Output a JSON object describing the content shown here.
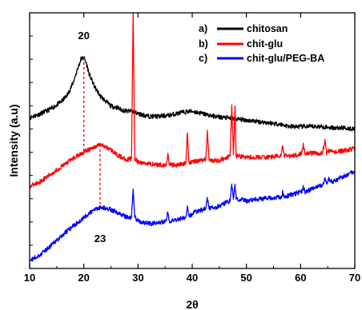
{
  "chart_data": {
    "type": "line",
    "xlabel": "2θ",
    "ylabel": "Intensity (a.u)",
    "xlim": [
      10,
      70
    ],
    "xticks": [
      10,
      20,
      30,
      40,
      50,
      60,
      70
    ],
    "xtick_labels": [
      "10",
      "20",
      "30",
      "40",
      "50",
      "60",
      "70"
    ],
    "ylim": [
      0,
      100
    ],
    "y_tick_labels_shown": false,
    "grid": false,
    "legend_position": "top-right",
    "series": [
      {
        "name": "chitosan",
        "legend_prefix": "a)",
        "color": "#000000",
        "x": [
          10,
          12,
          14,
          16,
          17,
          18,
          19,
          19.5,
          20,
          20.5,
          21,
          22,
          23,
          24,
          25,
          26,
          27,
          28,
          29,
          30,
          32,
          34,
          36,
          38,
          40,
          42,
          44,
          46,
          48,
          50,
          52,
          54,
          56,
          58,
          60,
          62,
          64,
          66,
          68,
          70
        ],
        "y": [
          59,
          60.5,
          62.5,
          65.5,
          68,
          72.5,
          79,
          82,
          82.5,
          80,
          76,
          71,
          67.5,
          65.5,
          63.5,
          63,
          62,
          61.5,
          61.5,
          60.5,
          59.5,
          59.5,
          60,
          61,
          61.5,
          60.5,
          59.5,
          59,
          58.5,
          58,
          57.5,
          57,
          56.5,
          55.5,
          55.5,
          55.5,
          55.5,
          55,
          55,
          54.5
        ]
      },
      {
        "name": "chit-glu",
        "legend_prefix": "b)",
        "color": "#ff0000",
        "x": [
          10,
          12,
          14,
          16,
          18,
          20,
          21,
          22,
          23,
          24,
          25,
          26,
          27,
          28,
          28.8,
          29.1,
          29.4,
          30,
          32,
          34,
          35.2,
          35.5,
          35.8,
          37,
          38.8,
          39.1,
          39.4,
          40.5,
          42.5,
          42.8,
          43.1,
          44.5,
          46,
          47,
          47.3,
          47.6,
          47.9,
          48.1,
          48.4,
          50,
          52,
          54,
          56.4,
          56.7,
          57,
          58.5,
          60.2,
          60.5,
          60.8,
          62,
          64,
          64.5,
          64.8,
          65.1,
          66,
          68,
          70
        ],
        "y": [
          32,
          34,
          37,
          40,
          43,
          45.5,
          46.5,
          47.5,
          48.5,
          47.5,
          46.5,
          44.5,
          43.5,
          42.5,
          43,
          100,
          43,
          41.5,
          41,
          40.5,
          40.5,
          45,
          40.5,
          40.5,
          41,
          53,
          41.5,
          42,
          42.5,
          54,
          42.5,
          42,
          43,
          44,
          64,
          44.5,
          63.5,
          44,
          44,
          43.5,
          43.5,
          43.5,
          44,
          48,
          44,
          44,
          45,
          49,
          45,
          45,
          45,
          50,
          45,
          46,
          45.5,
          46,
          47
        ]
      },
      {
        "name": "chit-glu/PEG-BA",
        "legend_prefix": "c)",
        "color": "#0000ff",
        "x": [
          10,
          12,
          14,
          16,
          18,
          20,
          21,
          22,
          23,
          24,
          25,
          26,
          27,
          28,
          28.8,
          29.1,
          29.4,
          30,
          32,
          34,
          35.2,
          35.5,
          35.8,
          37,
          38.8,
          39.1,
          39.4,
          40.5,
          42.5,
          42.8,
          43.1,
          44.5,
          46,
          47,
          47.3,
          47.6,
          47.9,
          48.1,
          48.4,
          50,
          52,
          54,
          56.4,
          56.7,
          57,
          58.5,
          60.2,
          60.5,
          60.8,
          62,
          64,
          64.5,
          64.8,
          65.1,
          66,
          68,
          70
        ],
        "y": [
          3,
          5.5,
          9,
          13,
          16.5,
          20,
          21.5,
          23,
          24,
          23.5,
          23,
          22,
          21,
          20,
          20,
          31,
          20,
          18.5,
          17.5,
          18,
          18.5,
          22,
          18.5,
          19,
          20,
          24.5,
          20.5,
          22,
          23.5,
          27.5,
          23.5,
          24,
          25.5,
          26.5,
          33,
          27,
          33,
          27,
          27,
          26.5,
          27,
          27.5,
          28,
          30,
          28,
          29,
          30,
          32,
          30,
          31,
          32.5,
          35.5,
          33,
          35,
          34,
          36,
          38
        ]
      }
    ],
    "annotations": [
      {
        "text": "20",
        "x": 20
      },
      {
        "text": "23",
        "x": 23
      }
    ],
    "reference_lines": [
      {
        "x": 20,
        "style": "dashed",
        "color": "#ff0000"
      },
      {
        "x": 23,
        "style": "dashed",
        "color": "#ff0000"
      }
    ]
  }
}
